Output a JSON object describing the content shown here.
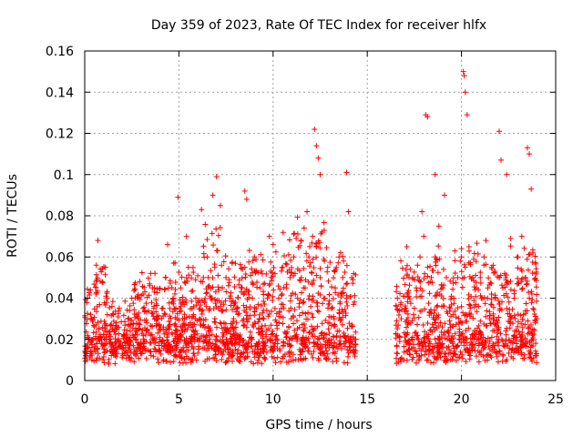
{
  "chart_data": {
    "type": "scatter",
    "title": "Day 359 of 2023, Rate Of TEC Index for receiver hlfx",
    "xlabel": "GPS time / hours",
    "ylabel": "ROTI / TECUs",
    "xlim": [
      0,
      25
    ],
    "ylim": [
      0,
      0.16
    ],
    "xticks": [
      0,
      5,
      10,
      15,
      20,
      25
    ],
    "xtick_labels": [
      "0",
      "5",
      "10",
      "15",
      "20",
      "25"
    ],
    "yticks": [
      0,
      0.02,
      0.04,
      0.06,
      0.08,
      0.1,
      0.12,
      0.14,
      0.16
    ],
    "ytick_labels": [
      "0",
      "0.02",
      "0.04",
      "0.06",
      "0.08",
      "0.1",
      "0.12",
      "0.14",
      "0.16"
    ],
    "grid": true,
    "marker": "+",
    "color": "#ff0000",
    "data_gap_hours": [
      14.4,
      16.5
    ],
    "series": [
      {
        "name": "ROTI",
        "x": [
          0.05,
          0.2,
          0.35,
          0.5,
          0.6,
          0.75,
          0.9,
          1.1,
          1.3,
          1.5,
          1.7,
          1.9,
          2.1,
          2.3,
          2.5,
          2.7,
          2.9,
          3.1,
          3.3,
          3.5,
          3.7,
          3.9,
          4.1,
          4.3,
          4.5,
          4.7,
          4.9,
          5.1,
          5.3,
          5.5,
          5.7,
          5.9,
          6.1,
          6.3,
          6.5,
          6.7,
          6.9,
          7.1,
          7.3,
          7.5,
          7.7,
          7.9,
          8.1,
          8.3,
          8.5,
          8.7,
          8.9,
          9.1,
          9.3,
          9.5,
          9.7,
          9.9,
          10.1,
          10.3,
          10.5,
          10.7,
          10.9,
          11.1,
          11.3,
          11.5,
          11.7,
          11.9,
          12.1,
          12.3,
          12.5,
          12.7,
          12.9,
          13.1,
          13.3,
          13.5,
          13.7,
          13.9,
          14.1,
          14.3,
          0.3,
          0.7,
          1.2,
          2.8,
          3.6,
          4.4,
          4.95,
          5.4,
          6.2,
          6.8,
          7.0,
          7.2,
          8.5,
          8.6,
          9.8,
          10.0,
          11.5,
          11.8,
          12.2,
          12.3,
          12.4,
          12.5,
          13.9,
          14.0,
          16.6,
          16.8,
          17.0,
          17.2,
          17.4,
          17.6,
          17.8,
          18.0,
          18.2,
          18.4,
          18.6,
          18.8,
          19.0,
          19.2,
          19.4,
          19.6,
          19.8,
          20.0,
          20.2,
          20.4,
          20.6,
          20.8,
          21.0,
          21.2,
          21.4,
          21.6,
          21.8,
          22.0,
          22.2,
          22.4,
          22.6,
          22.8,
          23.0,
          23.2,
          23.4,
          23.6,
          23.8,
          24.0,
          17.1,
          17.9,
          18.1,
          18.2,
          18.6,
          19.1,
          20.1,
          20.15,
          20.2,
          20.3,
          21.3,
          22.0,
          22.1,
          22.4,
          23.5,
          23.6,
          23.7
        ],
        "y": [
          0.012,
          0.02,
          0.03,
          0.015,
          0.042,
          0.025,
          0.018,
          0.055,
          0.02,
          0.014,
          0.025,
          0.018,
          0.022,
          0.03,
          0.04,
          0.02,
          0.025,
          0.035,
          0.028,
          0.022,
          0.045,
          0.03,
          0.035,
          0.05,
          0.025,
          0.04,
          0.03,
          0.045,
          0.03,
          0.055,
          0.035,
          0.04,
          0.03,
          0.05,
          0.06,
          0.04,
          0.055,
          0.035,
          0.045,
          0.05,
          0.04,
          0.03,
          0.035,
          0.045,
          0.055,
          0.03,
          0.04,
          0.035,
          0.045,
          0.03,
          0.04,
          0.05,
          0.035,
          0.04,
          0.055,
          0.045,
          0.05,
          0.06,
          0.04,
          0.05,
          0.045,
          0.06,
          0.07,
          0.065,
          0.05,
          0.04,
          0.055,
          0.035,
          0.045,
          0.06,
          0.05,
          0.04,
          0.02,
          0.015,
          0.044,
          0.068,
          0.032,
          0.04,
          0.045,
          0.066,
          0.089,
          0.07,
          0.083,
          0.09,
          0.099,
          0.085,
          0.092,
          0.088,
          0.07,
          0.066,
          0.068,
          0.082,
          0.122,
          0.114,
          0.108,
          0.1,
          0.101,
          0.082,
          0.04,
          0.03,
          0.035,
          0.028,
          0.05,
          0.045,
          0.06,
          0.07,
          0.055,
          0.05,
          0.06,
          0.075,
          0.045,
          0.05,
          0.035,
          0.04,
          0.05,
          0.06,
          0.055,
          0.065,
          0.05,
          0.045,
          0.05,
          0.06,
          0.045,
          0.055,
          0.04,
          0.05,
          0.045,
          0.035,
          0.03,
          0.04,
          0.06,
          0.07,
          0.05,
          0.04,
          0.035,
          0.03,
          0.065,
          0.082,
          0.129,
          0.128,
          0.1,
          0.09,
          0.15,
          0.148,
          0.14,
          0.129,
          0.068,
          0.121,
          0.107,
          0.1,
          0.113,
          0.11,
          0.093
        ]
      }
    ]
  }
}
